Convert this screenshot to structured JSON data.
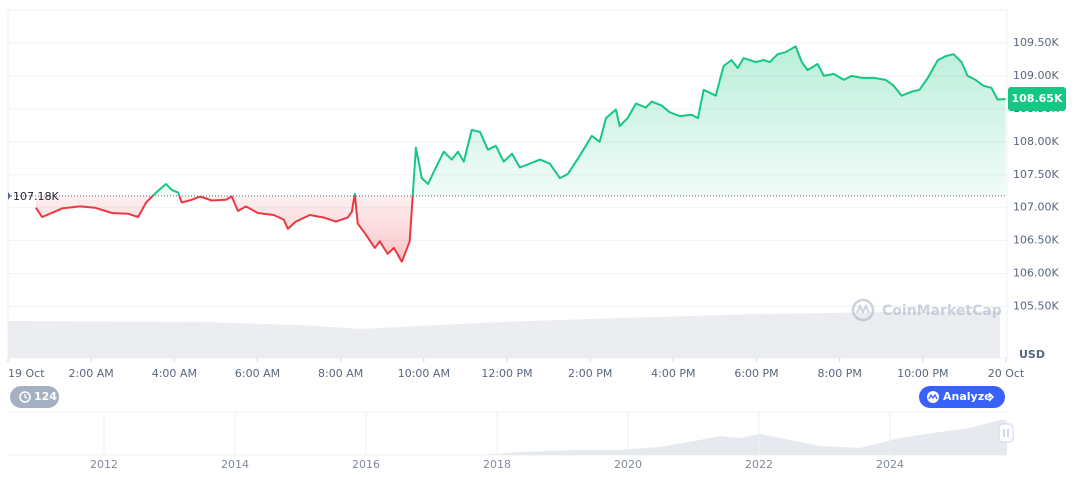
{
  "chart_data": {
    "type": "line",
    "x": [
      0.67,
      0.82,
      1.01,
      1.3,
      1.73,
      2.09,
      2.5,
      2.88,
      3.13,
      3.32,
      3.56,
      3.8,
      3.94,
      4.09,
      4.18,
      4.42,
      4.62,
      4.9,
      5.24,
      5.38,
      5.53,
      5.72,
      6.01,
      6.39,
      6.63,
      6.73,
      6.92,
      7.26,
      7.6,
      7.88,
      8.17,
      8.27,
      8.34,
      8.41,
      8.61,
      8.82,
      8.94,
      9.13,
      9.28,
      9.47,
      9.66,
      9.81,
      9.95,
      10.1,
      10.29,
      10.48,
      10.67,
      10.82,
      10.96,
      11.15,
      11.35,
      11.54,
      11.73,
      11.92,
      12.12,
      12.31,
      12.55,
      12.79,
      13.03,
      13.27,
      13.46,
      13.75,
      14.04,
      14.23,
      14.38,
      14.62,
      14.71,
      14.9,
      15.1,
      15.34,
      15.48,
      15.72,
      15.91,
      16.15,
      16.44,
      16.59,
      16.73,
      17.02,
      17.21,
      17.4,
      17.55,
      17.69,
      17.98,
      18.17,
      18.32,
      18.51,
      18.7,
      18.94,
      19.09,
      19.23,
      19.47,
      19.62,
      19.86,
      20.1,
      20.29,
      20.53,
      20.82,
      21.11,
      21.3,
      21.49,
      21.73,
      21.92,
      22.12,
      22.36,
      22.55,
      22.74,
      22.93,
      23.08,
      23.27,
      23.46,
      23.65,
      23.8,
      23.99
    ],
    "values": [
      107000,
      106860,
      106910,
      106990,
      107020,
      107000,
      106920,
      106910,
      106860,
      107080,
      107230,
      107360,
      107270,
      107230,
      107080,
      107120,
      107170,
      107110,
      107120,
      107170,
      106950,
      107020,
      106920,
      106890,
      106820,
      106680,
      106790,
      106890,
      106850,
      106790,
      106850,
      106940,
      107210,
      106760,
      106590,
      106390,
      106490,
      106300,
      106390,
      106180,
      106490,
      107910,
      107450,
      107360,
      107610,
      107850,
      107730,
      107850,
      107700,
      108180,
      108150,
      107880,
      107940,
      107700,
      107820,
      107610,
      107670,
      107730,
      107670,
      107450,
      107510,
      107790,
      108090,
      108000,
      108360,
      108490,
      108240,
      108360,
      108580,
      108520,
      108610,
      108550,
      108450,
      108390,
      108410,
      108360,
      108790,
      108700,
      109150,
      109240,
      109120,
      109270,
      109210,
      109240,
      109210,
      109330,
      109360,
      109450,
      109210,
      109090,
      109180,
      109000,
      109030,
      108940,
      109000,
      108970,
      108970,
      108940,
      108850,
      108700,
      108760,
      108790,
      108970,
      109240,
      109300,
      109330,
      109210,
      109000,
      108940,
      108850,
      108820,
      108640,
      108650
    ],
    "up_color": "#16c784",
    "down_color": "#ea3943",
    "xlim": [
      0,
      24
    ],
    "xticks": [
      {
        "value": 0,
        "label": "19 Oct"
      },
      {
        "value": 2,
        "label": "2:00 AM"
      },
      {
        "value": 4,
        "label": "4:00 AM"
      },
      {
        "value": 6,
        "label": "6:00 AM"
      },
      {
        "value": 8,
        "label": "8:00 AM"
      },
      {
        "value": 10,
        "label": "10:00 AM"
      },
      {
        "value": 12,
        "label": "12:00 PM"
      },
      {
        "value": 14,
        "label": "2:00 PM"
      },
      {
        "value": 16,
        "label": "4:00 PM"
      },
      {
        "value": 18,
        "label": "6:00 PM"
      },
      {
        "value": 20,
        "label": "8:00 PM"
      },
      {
        "value": 22,
        "label": "10:00 PM"
      },
      {
        "value": 24,
        "label": "20 Oct"
      }
    ],
    "ylim": [
      104720,
      110000
    ],
    "yticks": [
      {
        "value": 105500,
        "label": "105.50K"
      },
      {
        "value": 106000,
        "label": "106.00K"
      },
      {
        "value": 106500,
        "label": "106.50K"
      },
      {
        "value": 107000,
        "label": "107.00K"
      },
      {
        "value": 107500,
        "label": "107.50K"
      },
      {
        "value": 108000,
        "label": "108.00K"
      },
      {
        "value": 108500,
        "label": "108.50K"
      },
      {
        "value": 109000,
        "label": "109.00K"
      },
      {
        "value": 109500,
        "label": "109.50K"
      }
    ],
    "grid": true,
    "baseline": {
      "value": 107180,
      "label": "107.18K"
    },
    "current": {
      "value": 108650,
      "label": "108.65K"
    },
    "currency": "USD"
  },
  "ui": {
    "history_count": 124,
    "analyze": "Analyze",
    "watermark": "CoinMarketCap"
  },
  "navigator": {
    "years": [
      2012,
      2014,
      2016,
      2018,
      2020,
      2022,
      2024
    ]
  }
}
